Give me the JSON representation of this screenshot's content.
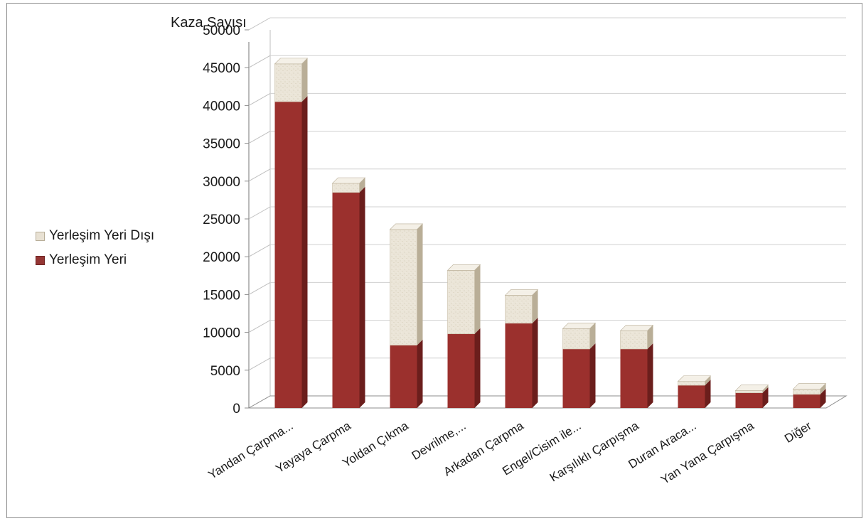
{
  "chart_data": {
    "type": "bar",
    "stacked": true,
    "ylabel": "Kaza Sayısı",
    "ylim": [
      0,
      50000
    ],
    "yticks": [
      0,
      5000,
      10000,
      15000,
      20000,
      25000,
      30000,
      35000,
      40000,
      45000,
      50000
    ],
    "categories": [
      "Yandan Çarpma...",
      "Yayaya Çarpma",
      "Yoldan Çıkma",
      "Devrilme,...",
      "Arkadan Çarpma",
      "Engel/Cisim ile...",
      "Karşılıklı Çarpışma",
      "Duran Araca...",
      "Yan Yana Çarpışma",
      "Diğer"
    ],
    "series": [
      {
        "name": "Yerleşim Yeri",
        "color": "#943634",
        "values": [
          40500,
          28500,
          8300,
          9800,
          11200,
          7800,
          7800,
          3000,
          2000,
          1800
        ]
      },
      {
        "name": "Yerleşim Yeri Dışı",
        "color": "#e8e1d3",
        "values": [
          5000,
          1200,
          15300,
          8400,
          3700,
          2700,
          2400,
          500,
          300,
          700
        ]
      }
    ],
    "grid": true,
    "legend_position": "left"
  }
}
